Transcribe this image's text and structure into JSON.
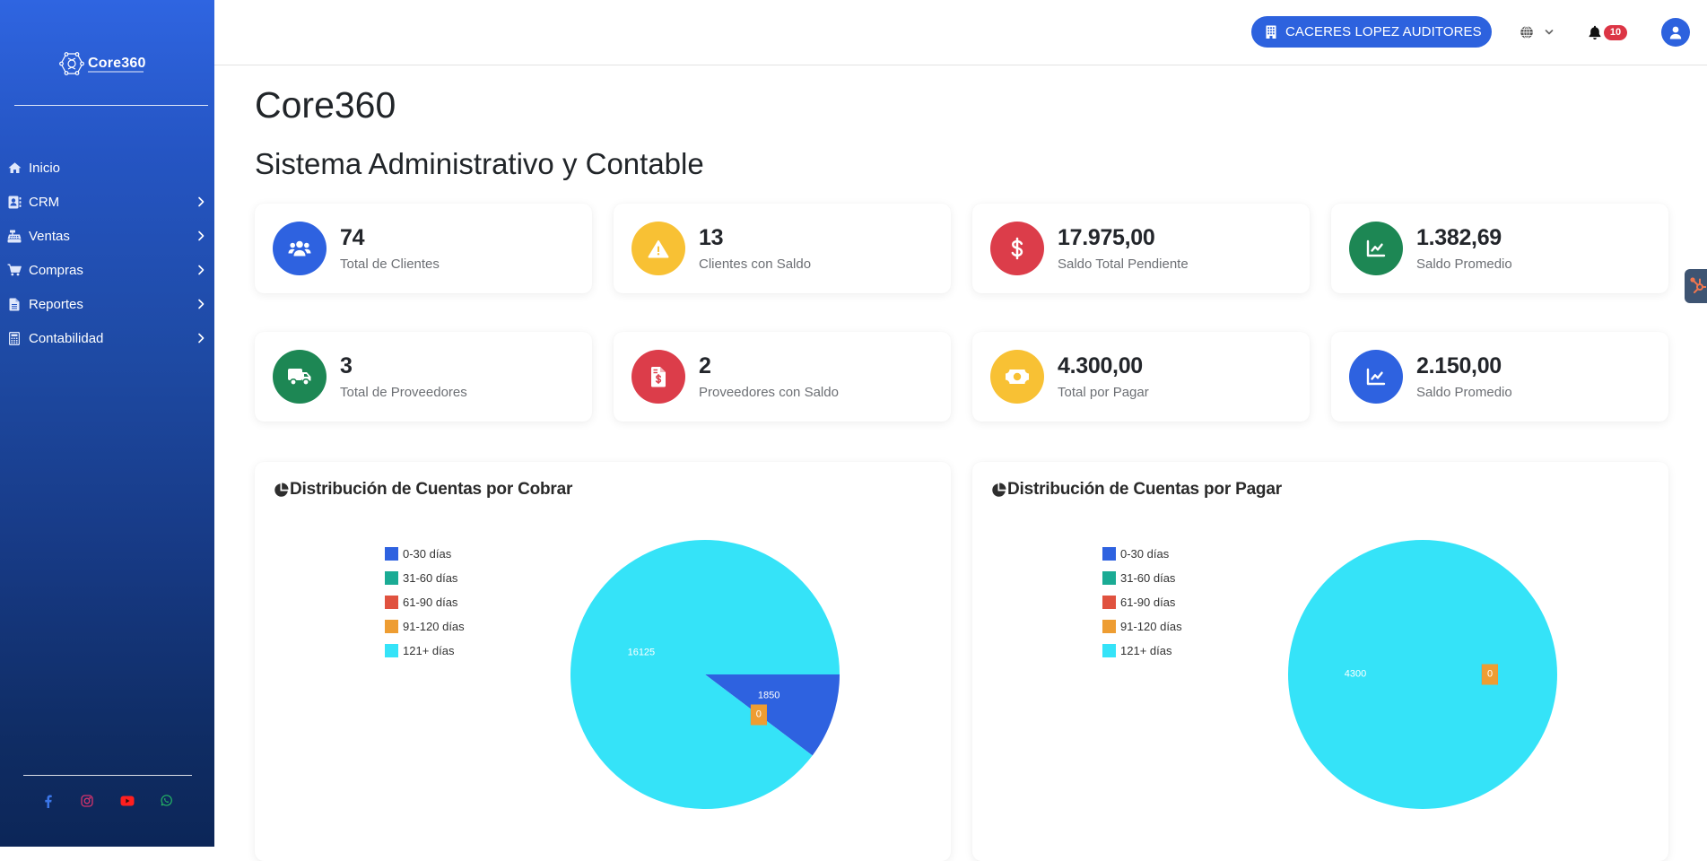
{
  "sidebar": {
    "brand": "Core360",
    "menu": [
      {
        "label": "Inicio",
        "icon": "home-icon",
        "submenu": false
      },
      {
        "label": "CRM",
        "icon": "address-card-icon",
        "submenu": true
      },
      {
        "label": "Ventas",
        "icon": "cash-register-icon",
        "submenu": true
      },
      {
        "label": "Compras",
        "icon": "shopping-cart-icon",
        "submenu": true
      },
      {
        "label": "Reportes",
        "icon": "file-text-icon",
        "submenu": true
      },
      {
        "label": "Contabilidad",
        "icon": "calculator-icon",
        "submenu": true
      }
    ],
    "social": [
      {
        "name": "facebook",
        "icon": "facebook-icon",
        "color": "#3b76e8"
      },
      {
        "name": "instagram",
        "icon": "instagram-icon",
        "color": "#d6336c"
      },
      {
        "name": "youtube",
        "icon": "youtube-icon",
        "color": "#ff1f1f"
      },
      {
        "name": "whatsapp",
        "icon": "whatsapp-icon",
        "color": "#25b864"
      }
    ]
  },
  "header": {
    "company_button": {
      "label": "CACERES LOPEZ AUDITORES",
      "icon": "building-icon",
      "color": "#2d62de"
    },
    "language_button": {
      "icon": "globe-icon"
    },
    "notifications": {
      "icon": "bell-icon",
      "count": "10",
      "badge_color": "#dc3545"
    },
    "user_menu": {
      "icon": "user-icon",
      "color": "#2d62de"
    }
  },
  "page": {
    "title": "Core360",
    "subtitle": "Sistema Administrativo y Contable"
  },
  "stats": {
    "clients": [
      {
        "value": "74",
        "label": "Total de Clientes",
        "icon": "users-icon",
        "color": "#2e62e0"
      },
      {
        "value": "13",
        "label": "Clientes con Saldo",
        "icon": "warning-icon",
        "color": "#f8c134"
      },
      {
        "value": "17.975,00",
        "label": "Saldo Total Pendiente",
        "icon": "dollar-icon",
        "color": "#dc3d4a"
      },
      {
        "value": "1.382,69",
        "label": "Saldo Promedio",
        "icon": "chart-line-icon",
        "color": "#1d8754"
      }
    ],
    "suppliers": [
      {
        "value": "3",
        "label": "Total de Proveedores",
        "icon": "truck-icon",
        "color": "#1d8754"
      },
      {
        "value": "2",
        "label": "Proveedores con Saldo",
        "icon": "file-invoice-dollar-icon",
        "color": "#dc3d4a"
      },
      {
        "value": "4.300,00",
        "label": "Total por Pagar",
        "icon": "money-bill-icon",
        "color": "#f8c134"
      },
      {
        "value": "2.150,00",
        "label": "Saldo Promedio",
        "icon": "chart-line-icon",
        "color": "#2e62e0"
      }
    ]
  },
  "chart_data": [
    {
      "type": "pie",
      "title": "Distribución de Cuentas por Cobrar",
      "icon": "chart-pie-icon",
      "categories": [
        "0-30 días",
        "31-60 días",
        "61-90 días",
        "91-120 días",
        "121+ días"
      ],
      "values": [
        1850,
        0,
        0,
        0,
        16125
      ],
      "colors": [
        "#2e62e0",
        "#1aab94",
        "#e0523f",
        "#ee9d32",
        "#35e3f8"
      ],
      "data_labels": [
        "1850",
        "0",
        "0",
        "0",
        "16125"
      ],
      "legend_position": "left"
    },
    {
      "type": "pie",
      "title": "Distribución de Cuentas por Pagar",
      "icon": "chart-pie-icon",
      "categories": [
        "0-30 días",
        "31-60 días",
        "61-90 días",
        "91-120 días",
        "121+ días"
      ],
      "values": [
        0,
        0,
        0,
        0,
        4300
      ],
      "colors": [
        "#2e62e0",
        "#1aab94",
        "#e0523f",
        "#ee9d32",
        "#35e3f8"
      ],
      "data_labels": [
        "0",
        "0",
        "0",
        "0",
        "4300"
      ],
      "legend_position": "left"
    }
  ]
}
